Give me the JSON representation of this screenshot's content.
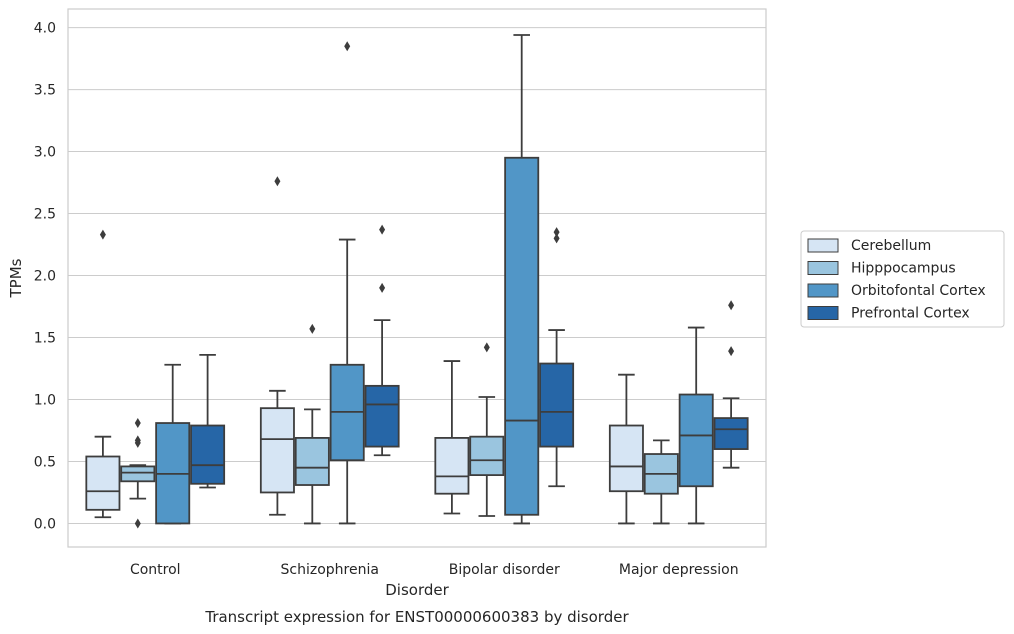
{
  "chart_data": {
    "type": "box",
    "title": "",
    "caption": "Transcript expression for ENST00000600383 by disorder",
    "xlabel": "Disorder",
    "ylabel": "TPMs",
    "ylim": [
      -0.19,
      4.15
    ],
    "yticks": [
      0.0,
      0.5,
      1.0,
      1.5,
      2.0,
      2.5,
      3.0,
      3.5,
      4.0
    ],
    "ytick_labels": [
      "0.0",
      "0.5",
      "1.0",
      "1.5",
      "2.0",
      "2.5",
      "3.0",
      "3.5",
      "4.0"
    ],
    "grid": true,
    "legend_position": "right",
    "categories": [
      "Control",
      "Schizophrenia",
      "Bipolar disorder",
      "Major depression"
    ],
    "series": [
      {
        "name": "Cerebellum",
        "color": "#d6e5f4",
        "boxes": [
          {
            "whislo": 0.05,
            "q1": 0.11,
            "med": 0.26,
            "q3": 0.54,
            "whishi": 0.7,
            "fliers": [
              2.33
            ]
          },
          {
            "whislo": 0.07,
            "q1": 0.25,
            "med": 0.68,
            "q3": 0.93,
            "whishi": 1.07,
            "fliers": [
              2.76
            ]
          },
          {
            "whislo": 0.08,
            "q1": 0.24,
            "med": 0.38,
            "q3": 0.69,
            "whishi": 1.31,
            "fliers": []
          },
          {
            "whislo": 0.0,
            "q1": 0.26,
            "med": 0.46,
            "q3": 0.79,
            "whishi": 1.2,
            "fliers": []
          }
        ]
      },
      {
        "name": "Hipppocampus",
        "color": "#9ac5df",
        "boxes": [
          {
            "whislo": 0.2,
            "q1": 0.34,
            "med": 0.41,
            "q3": 0.46,
            "whishi": 0.47,
            "fliers": [
              0.81,
              0.67,
              0.65,
              0.0
            ]
          },
          {
            "whislo": 0.0,
            "q1": 0.31,
            "med": 0.45,
            "q3": 0.69,
            "whishi": 0.92,
            "fliers": [
              1.57
            ]
          },
          {
            "whislo": 0.06,
            "q1": 0.39,
            "med": 0.51,
            "q3": 0.7,
            "whishi": 1.02,
            "fliers": [
              1.42
            ]
          },
          {
            "whislo": 0.0,
            "q1": 0.24,
            "med": 0.4,
            "q3": 0.56,
            "whishi": 0.67,
            "fliers": []
          }
        ]
      },
      {
        "name": "Orbitofontal Cortex",
        "color": "#5196c7",
        "boxes": [
          {
            "whislo": 0.0,
            "q1": 0.0,
            "med": 0.4,
            "q3": 0.81,
            "whishi": 1.28,
            "fliers": []
          },
          {
            "whislo": 0.0,
            "q1": 0.51,
            "med": 0.9,
            "q3": 1.28,
            "whishi": 2.29,
            "fliers": [
              3.85
            ]
          },
          {
            "whislo": 0.0,
            "q1": 0.07,
            "med": 0.83,
            "q3": 2.95,
            "whishi": 3.94,
            "fliers": []
          },
          {
            "whislo": 0.0,
            "q1": 0.3,
            "med": 0.71,
            "q3": 1.04,
            "whishi": 1.58,
            "fliers": []
          }
        ]
      },
      {
        "name": "Prefrontal Cortex",
        "color": "#2666a7",
        "boxes": [
          {
            "whislo": 0.29,
            "q1": 0.32,
            "med": 0.47,
            "q3": 0.79,
            "whishi": 1.36,
            "fliers": []
          },
          {
            "whislo": 0.55,
            "q1": 0.62,
            "med": 0.96,
            "q3": 1.11,
            "whishi": 1.64,
            "fliers": [
              2.37,
              1.9
            ]
          },
          {
            "whislo": 0.3,
            "q1": 0.62,
            "med": 0.9,
            "q3": 1.29,
            "whishi": 1.56,
            "fliers": [
              2.35,
              2.3
            ]
          },
          {
            "whislo": 0.45,
            "q1": 0.6,
            "med": 0.76,
            "q3": 0.85,
            "whishi": 1.01,
            "fliers": [
              1.76,
              1.39
            ]
          }
        ]
      }
    ]
  }
}
